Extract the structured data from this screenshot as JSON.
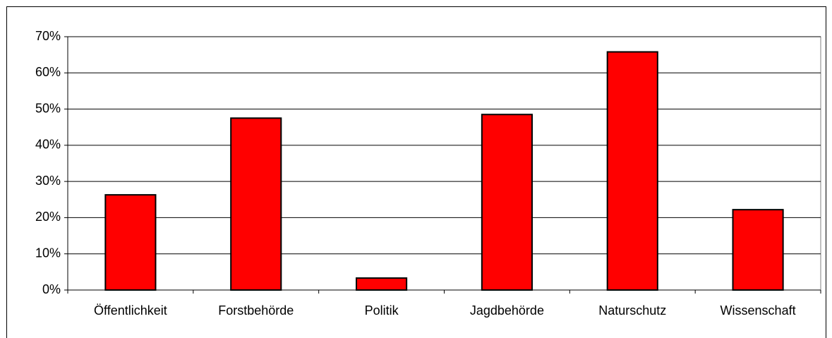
{
  "chart_data": {
    "type": "bar",
    "categories": [
      "Öffentlichkeit",
      "Forstbehörde",
      "Politik",
      "Jagdbehörde",
      "Naturschutz",
      "Wissenschaft"
    ],
    "values": [
      26.3,
      47.5,
      3.3,
      48.5,
      65.8,
      22.2
    ],
    "color": "#ff0000",
    "ylim": [
      0,
      70
    ],
    "yticks": [
      {
        "value": 0,
        "label": "0%"
      },
      {
        "value": 10,
        "label": "10%"
      },
      {
        "value": 20,
        "label": "20%"
      },
      {
        "value": 30,
        "label": "30%"
      },
      {
        "value": 40,
        "label": "40%"
      },
      {
        "value": 50,
        "label": "50%"
      },
      {
        "value": 60,
        "label": "60%"
      },
      {
        "value": 70,
        "label": "70%"
      }
    ],
    "grid": true
  }
}
